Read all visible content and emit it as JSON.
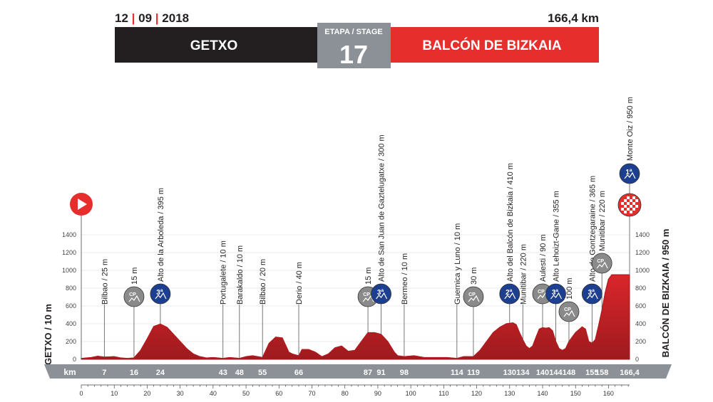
{
  "header": {
    "date_day": "12",
    "date_month": "09",
    "date_year": "2018",
    "distance": "166,4 km",
    "start_city": "GETXO",
    "finish_city": "BALCÓN DE BIZKAIA",
    "stage_label": "ETAPA / STAGE",
    "stage_number": "17"
  },
  "colors": {
    "accent_red": "#e62e2d",
    "dark": "#231f20",
    "grey_box": "#8b9196",
    "mountain_blue": "#1d3f8f",
    "sprint_grey": "#8a8a8a",
    "profile_fill": "#d9262b",
    "profile_dark": "#9e1a1e"
  },
  "chart_data": {
    "type": "area",
    "xlim": [
      0,
      166.4
    ],
    "ylim": [
      0,
      1400
    ],
    "y_ticks": [
      0,
      200,
      400,
      600,
      800,
      1000,
      1200,
      1400
    ],
    "x_ticks": [
      0,
      10,
      20,
      30,
      40,
      50,
      60,
      70,
      80,
      90,
      100,
      110,
      120,
      130,
      140,
      150,
      160
    ],
    "ylabel_left": "GETXO / 10 m",
    "ylabel_right": "BALCÓN DE BIZKAIA / 950 m",
    "km_bar_label": "km",
    "km_bar": [
      {
        "km": 7,
        "label": "7"
      },
      {
        "km": 16,
        "label": "16"
      },
      {
        "km": 24,
        "label": "24"
      },
      {
        "km": 43,
        "label": "43"
      },
      {
        "km": 48,
        "label": "48"
      },
      {
        "km": 55,
        "label": "55"
      },
      {
        "km": 66,
        "label": "66"
      },
      {
        "km": 87,
        "label": "87"
      },
      {
        "km": 91,
        "label": "91"
      },
      {
        "km": 98,
        "label": "98"
      },
      {
        "km": 114,
        "label": "114"
      },
      {
        "km": 119,
        "label": "119"
      },
      {
        "km": 130,
        "label": "130"
      },
      {
        "km": 134,
        "label": "134"
      },
      {
        "km": 140,
        "label": "140"
      },
      {
        "km": 144,
        "label": "144"
      },
      {
        "km": 148,
        "label": "148"
      },
      {
        "km": 155,
        "label": "155"
      },
      {
        "km": 158,
        "label": "158"
      },
      {
        "km": 166.4,
        "label": "166,4"
      }
    ],
    "profile": [
      [
        0,
        10
      ],
      [
        3,
        20
      ],
      [
        5,
        35
      ],
      [
        7,
        25
      ],
      [
        10,
        30
      ],
      [
        12,
        15
      ],
      [
        14,
        10
      ],
      [
        16,
        15
      ],
      [
        18,
        100
      ],
      [
        20,
        230
      ],
      [
        22,
        370
      ],
      [
        24,
        395
      ],
      [
        26,
        360
      ],
      [
        28,
        280
      ],
      [
        30,
        200
      ],
      [
        32,
        120
      ],
      [
        34,
        60
      ],
      [
        36,
        30
      ],
      [
        38,
        15
      ],
      [
        40,
        20
      ],
      [
        43,
        10
      ],
      [
        45,
        20
      ],
      [
        48,
        10
      ],
      [
        50,
        30
      ],
      [
        52,
        40
      ],
      [
        55,
        20
      ],
      [
        57,
        180
      ],
      [
        59,
        250
      ],
      [
        61,
        240
      ],
      [
        63,
        80
      ],
      [
        64,
        60
      ],
      [
        66,
        40
      ],
      [
        67,
        110
      ],
      [
        69,
        110
      ],
      [
        71,
        80
      ],
      [
        73,
        30
      ],
      [
        75,
        60
      ],
      [
        77,
        130
      ],
      [
        79,
        150
      ],
      [
        81,
        90
      ],
      [
        83,
        100
      ],
      [
        85,
        200
      ],
      [
        87,
        300
      ],
      [
        89,
        300
      ],
      [
        91,
        280
      ],
      [
        93,
        200
      ],
      [
        95,
        80
      ],
      [
        96,
        40
      ],
      [
        98,
        30
      ],
      [
        101,
        40
      ],
      [
        104,
        20
      ],
      [
        108,
        20
      ],
      [
        111,
        20
      ],
      [
        114,
        10
      ],
      [
        116,
        30
      ],
      [
        119,
        30
      ],
      [
        121,
        100
      ],
      [
        123,
        200
      ],
      [
        125,
        300
      ],
      [
        127,
        360
      ],
      [
        129,
        400
      ],
      [
        131,
        410
      ],
      [
        132,
        390
      ],
      [
        133,
        300
      ],
      [
        134,
        220
      ],
      [
        135,
        150
      ],
      [
        136,
        120
      ],
      [
        137,
        150
      ],
      [
        138,
        250
      ],
      [
        139,
        340
      ],
      [
        140,
        355
      ],
      [
        141,
        350
      ],
      [
        142,
        355
      ],
      [
        143,
        320
      ],
      [
        144,
        200
      ],
      [
        145,
        120
      ],
      [
        146,
        100
      ],
      [
        147,
        120
      ],
      [
        148,
        200
      ],
      [
        150,
        300
      ],
      [
        152,
        365
      ],
      [
        153,
        340
      ],
      [
        154,
        200
      ],
      [
        155,
        180
      ],
      [
        156,
        220
      ],
      [
        157,
        380
      ],
      [
        158,
        550
      ],
      [
        159,
        750
      ],
      [
        160,
        900
      ],
      [
        161,
        950
      ],
      [
        164,
        950
      ],
      [
        166.4,
        950
      ]
    ],
    "labels": [
      {
        "km": 7,
        "text": "Bilbao / 25 m",
        "icon": ""
      },
      {
        "km": 16,
        "text": "15 m",
        "icon": "sprint"
      },
      {
        "km": 24,
        "text": "Alto de la Arboleda / 395 m",
        "icon": "cat3"
      },
      {
        "km": 43,
        "text": "Portugalete / 10 m",
        "icon": ""
      },
      {
        "km": 48,
        "text": "Barakaldo / 10 m",
        "icon": ""
      },
      {
        "km": 55,
        "text": "Bilbao / 20 m",
        "icon": ""
      },
      {
        "km": 66,
        "text": "Derio / 40 m",
        "icon": ""
      },
      {
        "km": 87,
        "text": "15 m",
        "icon": "sprint"
      },
      {
        "km": 91,
        "text": "Alto de San Juan de Gaztelugatxe / 300 m",
        "icon": "cat3"
      },
      {
        "km": 98,
        "text": "Bermeo / 10 m",
        "icon": ""
      },
      {
        "km": 114,
        "text": "Guernica y Luno / 10 m",
        "icon": ""
      },
      {
        "km": 119,
        "text": "30 m",
        "icon": "sprint"
      },
      {
        "km": 130,
        "text": "Alto del Balcón de Bizkaia / 410 m",
        "icon": "cat2"
      },
      {
        "km": 134,
        "text": "Munitibar / 220 m",
        "icon": ""
      },
      {
        "km": 140,
        "text": "Aulesti / 90 m",
        "icon": "sprint"
      },
      {
        "km": 144,
        "text": "Alto Lehoizt-Gane / 355 m",
        "icon": "cat3"
      },
      {
        "km": 148,
        "text": "100 m",
        "icon": "sprint"
      },
      {
        "km": 155,
        "text": "Alto de Gontzegaraine / 365 m",
        "icon": "cat3"
      },
      {
        "km": 158,
        "text": "Munitibar / 220 m",
        "icon": "sprint"
      },
      {
        "km": 166.4,
        "text": "Monte Oiz / 950 m",
        "icon": "cat1"
      }
    ],
    "icon_texts": {
      "sprint": "CP",
      "cat3": "3ª",
      "cat2": "2ª",
      "cat1": "1ª"
    }
  }
}
